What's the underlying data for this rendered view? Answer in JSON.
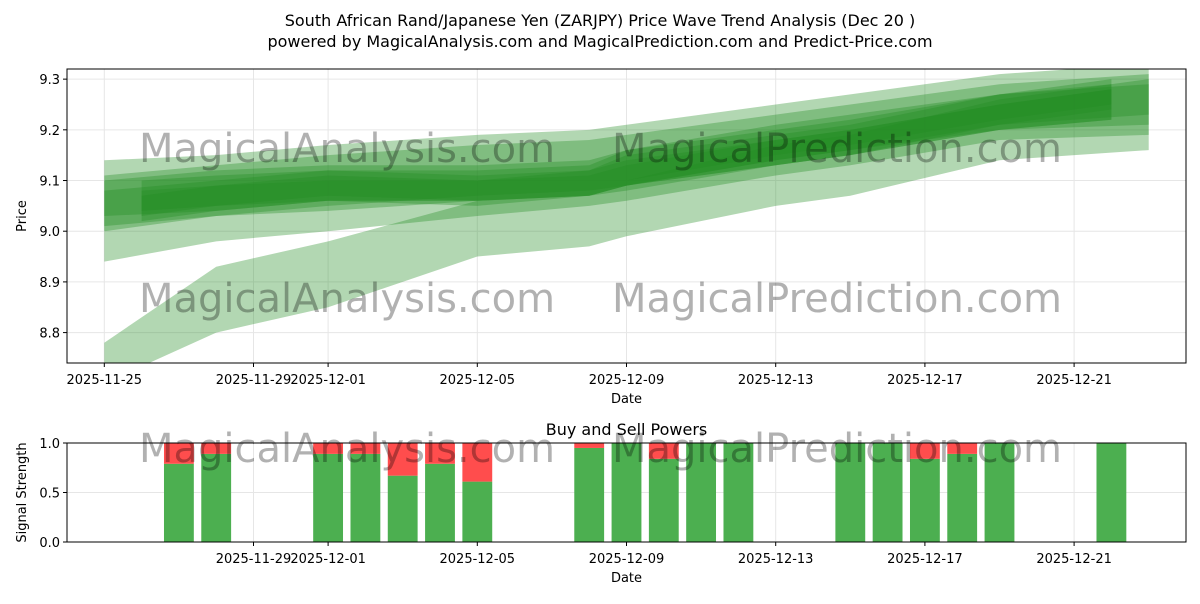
{
  "header": {
    "title": "South African Rand/Japanese Yen (ZARJPY) Price Wave Trend Analysis (Dec 20 )",
    "subtitle": "powered by MagicalAnalysis.com and MagicalPrediction.com and Predict-Price.com"
  },
  "watermarks": [
    "MagicalAnalysis.com",
    "MagicalPrediction.com"
  ],
  "colors": {
    "band": "#228b22",
    "buy": "#4caf50",
    "sell": "#ff4d4d",
    "grid": "#e6e6e6"
  },
  "chart_data": [
    {
      "type": "area",
      "title": "",
      "xlabel": "Date",
      "ylabel": "Price",
      "xlim": [
        "2025-11-24",
        "2025-12-24"
      ],
      "ylim": [
        8.74,
        9.32
      ],
      "yticks": [
        8.8,
        8.9,
        9.0,
        9.1,
        9.2,
        9.3
      ],
      "ytick_labels": [
        "8.8",
        "8.9",
        "9.0",
        "9.1",
        "9.2",
        "9.3"
      ],
      "xticks": [
        "2025-11-25",
        "2025-11-29",
        "2025-12-01",
        "2025-12-05",
        "2025-12-09",
        "2025-12-13",
        "2025-12-17",
        "2025-12-21"
      ],
      "grid": true,
      "bands": [
        {
          "x": [
            "2025-11-25",
            "2025-11-28",
            "2025-12-01",
            "2025-12-05",
            "2025-12-08",
            "2025-12-09",
            "2025-12-13",
            "2025-12-15",
            "2025-12-19",
            "2025-12-23"
          ],
          "lower": [
            8.7,
            8.8,
            8.85,
            8.95,
            8.97,
            8.99,
            9.05,
            9.07,
            9.14,
            9.16
          ],
          "upper": [
            8.78,
            8.93,
            8.98,
            9.06,
            9.08,
            9.1,
            9.17,
            9.19,
            9.26,
            9.3
          ]
        },
        {
          "x": [
            "2025-11-25",
            "2025-11-28",
            "2025-12-01",
            "2025-12-05",
            "2025-12-08",
            "2025-12-09",
            "2025-12-13",
            "2025-12-15",
            "2025-12-19",
            "2025-12-23"
          ],
          "lower": [
            8.94,
            8.98,
            9.0,
            9.03,
            9.05,
            9.06,
            9.11,
            9.13,
            9.18,
            9.19
          ],
          "upper": [
            9.14,
            9.15,
            9.17,
            9.19,
            9.2,
            9.21,
            9.25,
            9.27,
            9.31,
            9.33
          ]
        },
        {
          "x": [
            "2025-11-25",
            "2025-11-28",
            "2025-12-01",
            "2025-12-05",
            "2025-12-08",
            "2025-12-09",
            "2025-12-13",
            "2025-12-15",
            "2025-12-19",
            "2025-12-23"
          ],
          "lower": [
            9.01,
            9.03,
            9.05,
            9.07,
            9.08,
            9.09,
            9.14,
            9.16,
            9.2,
            9.21
          ],
          "upper": [
            9.11,
            9.13,
            9.15,
            9.17,
            9.18,
            9.19,
            9.23,
            9.25,
            9.29,
            9.31
          ]
        },
        {
          "x": [
            "2025-11-25",
            "2025-11-28",
            "2025-12-01",
            "2025-12-05",
            "2025-12-08",
            "2025-12-09",
            "2025-12-13",
            "2025-12-15",
            "2025-12-19",
            "2025-12-23"
          ],
          "lower": [
            9.03,
            9.04,
            9.06,
            9.06,
            9.07,
            9.09,
            9.13,
            9.15,
            9.21,
            9.23
          ],
          "upper": [
            9.08,
            9.1,
            9.12,
            9.11,
            9.12,
            9.15,
            9.19,
            9.21,
            9.27,
            9.29
          ]
        },
        {
          "x": [
            "2025-11-26",
            "2025-11-28",
            "2025-12-01",
            "2025-12-05",
            "2025-12-08",
            "2025-12-09",
            "2025-12-13",
            "2025-12-15",
            "2025-12-19",
            "2025-12-22"
          ],
          "lower": [
            9.04,
            9.05,
            9.07,
            9.06,
            9.08,
            9.1,
            9.15,
            9.17,
            9.22,
            9.25
          ],
          "upper": [
            9.1,
            9.11,
            9.12,
            9.12,
            9.13,
            9.16,
            9.2,
            9.22,
            9.27,
            9.3
          ]
        },
        {
          "x": [
            "2025-11-26",
            "2025-11-28",
            "2025-12-01",
            "2025-12-05",
            "2025-12-08",
            "2025-12-09",
            "2025-12-13",
            "2025-12-15",
            "2025-12-19",
            "2025-12-22"
          ],
          "lower": [
            9.02,
            9.04,
            9.06,
            9.05,
            9.07,
            9.09,
            9.13,
            9.15,
            9.2,
            9.22
          ],
          "upper": [
            9.08,
            9.09,
            9.11,
            9.1,
            9.12,
            9.14,
            9.18,
            9.2,
            9.25,
            9.28
          ]
        },
        {
          "x": [
            "2025-11-26",
            "2025-11-28",
            "2025-12-01",
            "2025-12-05",
            "2025-12-08",
            "2025-12-09",
            "2025-12-13",
            "2025-12-15",
            "2025-12-19",
            "2025-12-22"
          ],
          "lower": [
            9.03,
            9.05,
            9.06,
            9.06,
            9.07,
            9.09,
            9.14,
            9.16,
            9.21,
            9.24
          ],
          "upper": [
            9.07,
            9.09,
            9.1,
            9.1,
            9.11,
            9.13,
            9.18,
            9.2,
            9.25,
            9.28
          ]
        },
        {
          "x": [
            "2025-11-25",
            "2025-11-28",
            "2025-12-01",
            "2025-12-05",
            "2025-12-08",
            "2025-12-09",
            "2025-12-13",
            "2025-12-15",
            "2025-12-19",
            "2025-12-22"
          ],
          "lower": [
            9.0,
            9.03,
            9.04,
            9.06,
            9.07,
            9.08,
            9.13,
            9.15,
            9.2,
            9.22
          ],
          "upper": [
            9.1,
            9.12,
            9.13,
            9.13,
            9.14,
            9.16,
            9.21,
            9.23,
            9.27,
            9.29
          ]
        }
      ]
    },
    {
      "type": "bar",
      "title": "Buy and Sell Powers",
      "xlabel": "Date",
      "ylabel": "Signal Strength",
      "xlim": [
        "2025-11-24",
        "2025-12-24"
      ],
      "ylim": [
        0,
        1
      ],
      "yticks": [
        0,
        0.5,
        1
      ],
      "ytick_labels": [
        "0.0",
        "0.5",
        "1.0"
      ],
      "xticks": [
        "2025-11-29",
        "2025-12-01",
        "2025-12-05",
        "2025-12-09",
        "2025-12-13",
        "2025-12-17",
        "2025-12-21"
      ],
      "grid": true,
      "categories": [
        "2025-11-27",
        "2025-11-28",
        "2025-12-01",
        "2025-12-02",
        "2025-12-03",
        "2025-12-04",
        "2025-12-05",
        "2025-12-08",
        "2025-12-09",
        "2025-12-10",
        "2025-12-11",
        "2025-12-12",
        "2025-12-15",
        "2025-12-16",
        "2025-12-17",
        "2025-12-18",
        "2025-12-19",
        "2025-12-22"
      ],
      "series": [
        {
          "name": "Buy",
          "values": [
            0.79,
            0.89,
            0.89,
            0.89,
            0.67,
            0.79,
            0.61,
            0.95,
            1.0,
            0.84,
            1.0,
            1.0,
            1.0,
            1.0,
            0.84,
            0.89,
            1.0,
            1.0
          ]
        },
        {
          "name": "Sell",
          "values": [
            0.21,
            0.11,
            0.11,
            0.11,
            0.33,
            0.21,
            0.39,
            0.05,
            0.0,
            0.16,
            0.0,
            0.0,
            0.0,
            0.0,
            0.16,
            0.11,
            0.0,
            0.0
          ]
        }
      ]
    }
  ]
}
